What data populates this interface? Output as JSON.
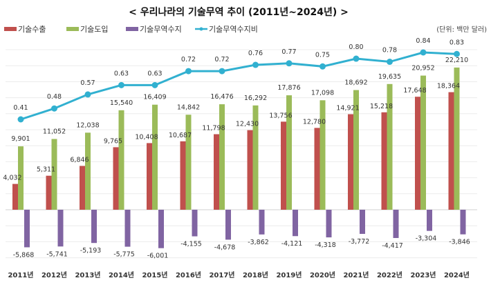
{
  "chart_data": {
    "type": "bar",
    "title": "< 우리나라의 기술무역 추이 (2011년~2024년) >",
    "unit_label": "(단위: 백만 달러)",
    "categories": [
      "2011년",
      "2012년",
      "2013년",
      "2014년",
      "2015년",
      "2016년",
      "2017년",
      "2018년",
      "2019년",
      "2020년",
      "2021년",
      "2022년",
      "2023년",
      "2024년"
    ],
    "series": [
      {
        "name": "기술수출",
        "kind": "bar",
        "color": "#c0504d",
        "values": [
          4032,
          5311,
          6846,
          9765,
          10408,
          10687,
          11798,
          12430,
          13756,
          12780,
          14921,
          15218,
          17648,
          18364
        ]
      },
      {
        "name": "기술도입",
        "kind": "bar",
        "color": "#9bbb59",
        "values": [
          9901,
          11052,
          12038,
          15540,
          16409,
          14842,
          16476,
          16292,
          17876,
          17098,
          18692,
          19635,
          20952,
          22210
        ]
      },
      {
        "name": "기술무역수지",
        "kind": "bar",
        "color": "#8064a2",
        "values": [
          -5868,
          -5741,
          -5193,
          -5775,
          -6001,
          -4155,
          -4678,
          -3862,
          -4121,
          -4318,
          -3772,
          -4417,
          -3304,
          -3846
        ]
      },
      {
        "name": "기술무역수지비",
        "kind": "line",
        "color": "#31b0d0",
        "axis": "secondary",
        "values": [
          0.41,
          0.48,
          0.57,
          0.63,
          0.63,
          0.72,
          0.72,
          0.76,
          0.77,
          0.75,
          0.8,
          0.78,
          0.84,
          0.83
        ]
      }
    ],
    "grid": true,
    "legend": "top-left"
  }
}
